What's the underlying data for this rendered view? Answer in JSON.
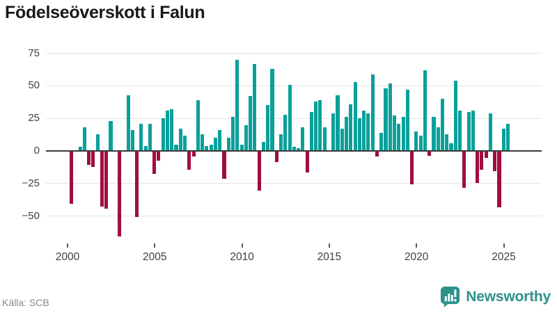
{
  "title": "Födelseöverskott i Falun",
  "footer": {
    "source": "Källa: SCB",
    "brand": "Newsworthy"
  },
  "colors": {
    "positive": "#0aa09a",
    "negative": "#a00d42",
    "brand": "#2d918b",
    "grid": "#e4e4e4",
    "zero_line": "#3a3a3a",
    "axis_text": "#3f3f3f",
    "title_text": "#181818",
    "source_text": "#878787"
  },
  "chart_data": {
    "type": "bar",
    "title": "Födelseöverskott i Falun",
    "frequency": "quarterly",
    "x_start": "2000 Q1",
    "x_end": "2025 Q1",
    "start_year": 2000,
    "values": [
      -40,
      0,
      3,
      18,
      -10,
      -12,
      13,
      -42,
      -44,
      23,
      0,
      -65,
      0,
      43,
      16,
      -50,
      21,
      4,
      21,
      -17,
      -7,
      25,
      31,
      32,
      5,
      17,
      12,
      -14,
      -4,
      39,
      13,
      4,
      5,
      10,
      16,
      -21,
      10,
      26,
      70,
      5,
      20,
      42,
      67,
      -30,
      7,
      35,
      63,
      -8,
      13,
      28,
      51,
      3,
      2,
      18,
      -16,
      30,
      38,
      39,
      18,
      0,
      29,
      43,
      17,
      26,
      36,
      53,
      25,
      31,
      29,
      59,
      -4,
      14,
      48,
      52,
      27,
      21,
      26,
      47,
      -25,
      15,
      12,
      62,
      -3,
      26,
      18,
      40,
      13,
      6,
      54,
      31,
      -28,
      30,
      31,
      -24,
      -14,
      -5,
      29,
      -15,
      -43,
      17,
      21
    ],
    "yticks": [
      75,
      50,
      25,
      0,
      -25,
      -50
    ],
    "ylim": [
      -68,
      80
    ],
    "xticks_years": [
      2000,
      2005,
      2010,
      2015,
      2020,
      2025
    ],
    "grid": true,
    "legend": false,
    "positive_color": "#0aa09a",
    "negative_color": "#a00d42"
  }
}
